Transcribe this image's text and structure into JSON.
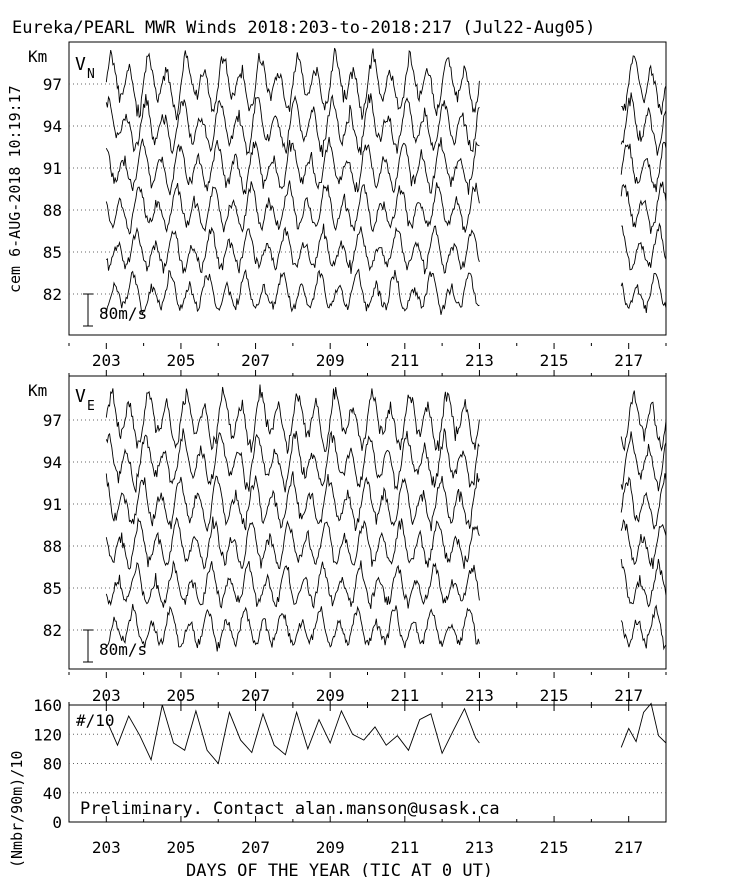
{
  "title": "Eureka/PEARL MWR Winds 2018:203-to-2018:217 (Jul22-Aug05)",
  "side_label": "cem 6-AUG-2018 10:19:17",
  "xlabel": "DAYS OF THE YEAR (TIC AT 0 UT)",
  "x_tick_labels": [
    "203",
    "205",
    "207",
    "209",
    "211",
    "213",
    "215",
    "217"
  ],
  "chart_data": [
    {
      "type": "line",
      "panel": "north-wind",
      "title": "V",
      "title_sub": "N",
      "ylabel": "Km",
      "height_labels": [
        "97",
        "94",
        "91",
        "88",
        "85",
        "82"
      ],
      "scale_label": "80m/s",
      "xlim": [
        202,
        218
      ],
      "data_gap": [
        213,
        216.8
      ],
      "grid": "dotted baselines at each height",
      "series_count": 6
    },
    {
      "type": "line",
      "panel": "east-wind",
      "title": "V",
      "title_sub": "E",
      "ylabel": "Km",
      "height_labels": [
        "97",
        "94",
        "91",
        "88",
        "85",
        "82"
      ],
      "scale_label": "80m/s",
      "xlim": [
        202,
        218
      ],
      "data_gap": [
        213,
        216.8
      ],
      "grid": "dotted baselines at each height",
      "series_count": 6
    },
    {
      "type": "line",
      "panel": "count",
      "title": "#/10",
      "ylabel": "(Nmbr/90m)/10",
      "ylim": [
        0,
        160
      ],
      "y_tick_labels": [
        "160",
        "120",
        "80",
        "40",
        "0"
      ],
      "note": "Preliminary. Contact alan.manson@usask.ca",
      "xlim": [
        202,
        218
      ],
      "series": [
        {
          "x": [
            203.0,
            203.3,
            203.6,
            203.9,
            204.2,
            204.5,
            204.8,
            205.1,
            205.4,
            205.7,
            206.0,
            206.3,
            206.6,
            206.9,
            207.2,
            207.5,
            207.8,
            208.1,
            208.4,
            208.7,
            209.0,
            209.3,
            209.6,
            209.9,
            210.2,
            210.5,
            210.8,
            211.1,
            211.4,
            211.7,
            212.0,
            212.3,
            212.6,
            212.9,
            213.0
          ],
          "y": [
            140,
            105,
            145,
            118,
            85,
            160,
            108,
            98,
            152,
            98,
            80,
            150,
            112,
            95,
            148,
            105,
            92,
            150,
            100,
            140,
            108,
            152,
            120,
            112,
            130,
            105,
            118,
            98,
            140,
            148,
            94,
            125,
            155,
            115,
            108
          ]
        },
        {
          "x": [
            216.8,
            217.0,
            217.2,
            217.4,
            217.6,
            217.8,
            218.0
          ],
          "y": [
            102,
            128,
            110,
            150,
            162,
            118,
            108
          ]
        }
      ]
    }
  ]
}
